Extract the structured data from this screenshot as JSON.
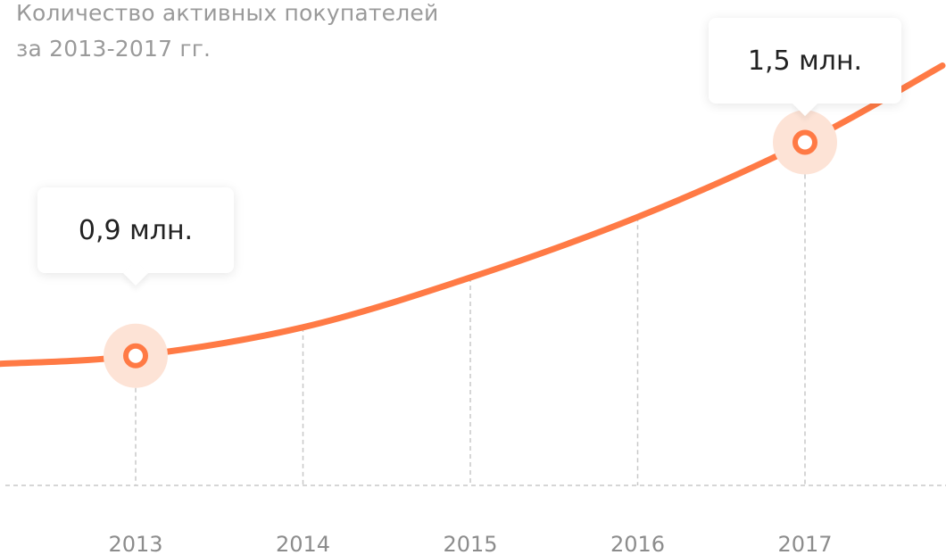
{
  "title": {
    "line1": "Количество активных покупателей",
    "line2": "за 2013-2017 гг."
  },
  "colors": {
    "line": "#ff7a45",
    "halo": "#fde3d6",
    "grid": "#c8c8c8",
    "tick_text": "#8c8c8c",
    "title_text": "#9a9a9a"
  },
  "chart_data": {
    "type": "line",
    "title": "Количество активных покупателей за 2013-2017 гг.",
    "unit": "млн.",
    "categories": [
      "2013",
      "2014",
      "2015",
      "2016",
      "2017"
    ],
    "series": [
      {
        "values": [
          0.9,
          0.98,
          1.12,
          1.29,
          1.5
        ]
      }
    ],
    "highlighted": [
      {
        "category": "2013",
        "value": 0.9,
        "label": "0,9 млн."
      },
      {
        "category": "2017",
        "value": 1.5,
        "label": "1,5 млн."
      }
    ],
    "ylim": [
      0.34,
      1.9
    ],
    "xlabel": "",
    "ylabel": "",
    "grid": "vertical-dashed",
    "legend": "none"
  }
}
